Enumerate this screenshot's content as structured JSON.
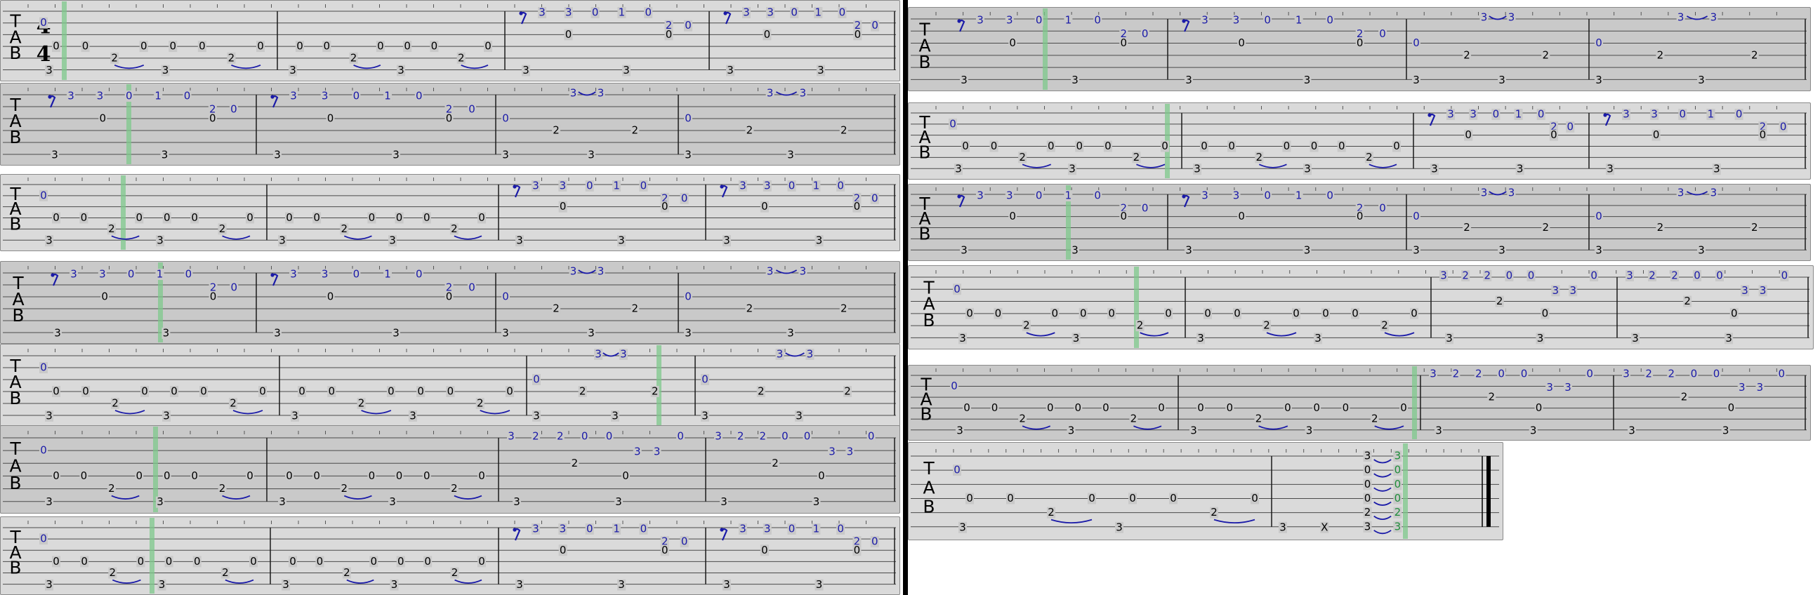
{
  "colors": {
    "background": "#c9c9c9",
    "background_alt": "#dadada",
    "staff_line": "#4a4a4a",
    "barline": "#1a1a1a",
    "note_low": "#000000",
    "note_high": "#1a1aa8",
    "playhead": "#7ec88b",
    "final_chord": "#1e8c3a"
  },
  "clef": [
    "T",
    "A",
    "B"
  ],
  "time_signature": {
    "top": "4",
    "bottom": "4"
  },
  "patterns": {
    "A": {
      "bass": [
        "0",
        "0",
        "2",
        "0",
        "0",
        "0",
        "2",
        "0"
      ],
      "thumb": [
        "3",
        "3"
      ],
      "first": "0",
      "tie_pairs": [
        [
          2,
          3
        ],
        [
          6,
          7
        ]
      ]
    },
    "B": {
      "rest": "rest-icon",
      "melody": [
        "3",
        "3",
        "0",
        "1",
        "0"
      ],
      "mid": [
        "0",
        "2",
        "0",
        "0"
      ],
      "thumb": [
        "3",
        "3"
      ]
    },
    "C": {
      "top": [
        "3",
        "3"
      ],
      "mid": [
        "0",
        "2",
        "2"
      ],
      "bass": [
        "3",
        "3"
      ]
    },
    "D": {
      "melody": [
        "3",
        "2",
        "2",
        "0",
        "0"
      ],
      "upper": [
        "3",
        "3",
        "0",
        "0"
      ],
      "lower": [
        "2",
        "0",
        "3",
        "3"
      ]
    },
    "end": {
      "chord": [
        "3",
        "0",
        "0",
        "0",
        "2",
        "3"
      ],
      "extra": [
        "3",
        "X"
      ]
    }
  },
  "lines": [
    {
      "id": "L1",
      "measures": [
        "A-first",
        "A",
        "B",
        "B"
      ]
    },
    {
      "id": "L2",
      "measures": [
        "B",
        "B",
        "C",
        "C"
      ]
    },
    {
      "id": "L3",
      "measures": [
        "A-first",
        "A",
        "B",
        "B"
      ]
    },
    {
      "id": "L4",
      "measures": [
        "B",
        "B",
        "C",
        "C"
      ]
    },
    {
      "id": "L5",
      "measures": [
        "A-first",
        "A",
        "C",
        "C"
      ]
    },
    {
      "id": "L6",
      "measures": [
        "A-first",
        "A",
        "D",
        "D"
      ]
    },
    {
      "id": "L7",
      "measures": [
        "A-first",
        "A",
        "B",
        "B"
      ]
    },
    {
      "id": "R1",
      "measures": [
        "B",
        "B",
        "C",
        "C"
      ]
    },
    {
      "id": "R2",
      "measures": [
        "A-first",
        "A",
        "B",
        "B"
      ]
    },
    {
      "id": "R3",
      "measures": [
        "B",
        "B",
        "C",
        "C"
      ]
    },
    {
      "id": "R4",
      "measures": [
        "A-first",
        "A",
        "D",
        "D"
      ]
    },
    {
      "id": "R5",
      "measures": [
        "A-first",
        "A",
        "D",
        "D"
      ]
    },
    {
      "id": "R6",
      "measures": [
        "A-first",
        "END"
      ]
    }
  ]
}
